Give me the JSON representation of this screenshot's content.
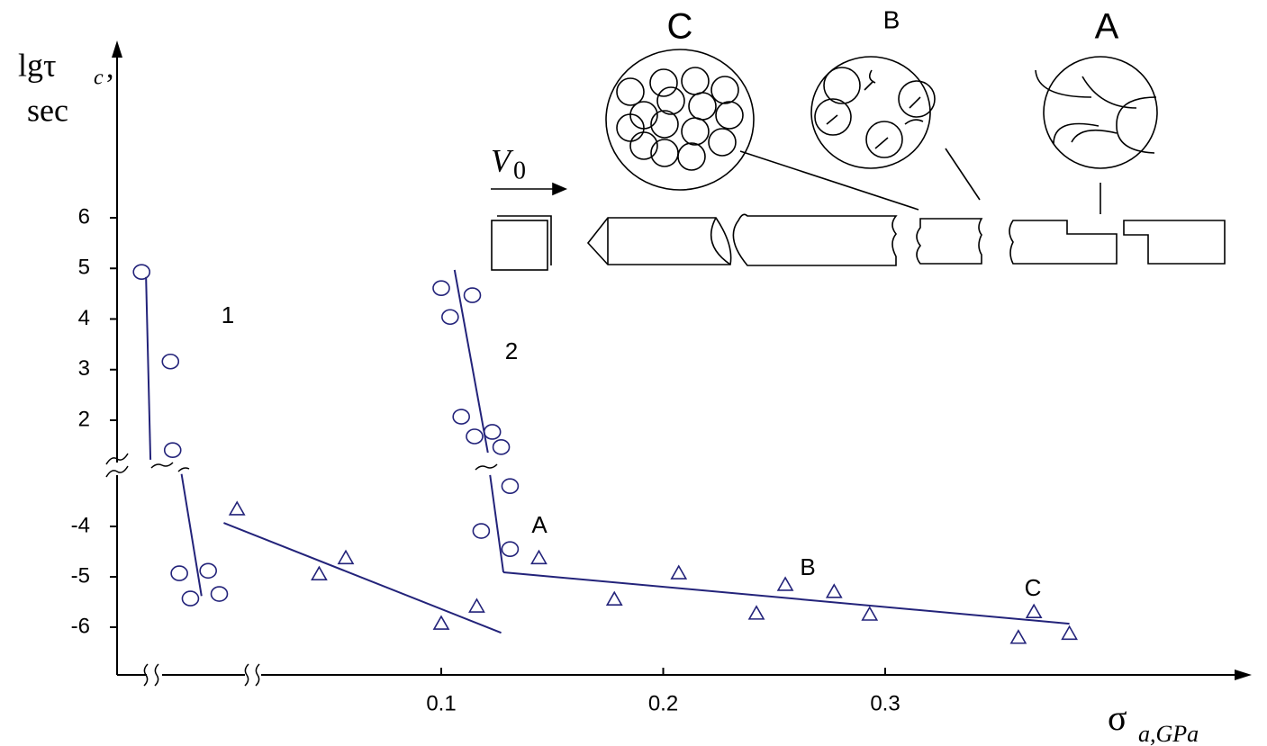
{
  "chart_data": {
    "type": "scatter",
    "ylabel": {
      "symbol": "lgτ",
      "subscript": "c",
      "suffix": ",",
      "unit": "sec"
    },
    "xlabel": {
      "symbol": "σ",
      "subscript": "a,GPa"
    },
    "xticks": [
      0.1,
      0.2,
      0.3
    ],
    "yticks_upper": [
      2,
      3,
      4,
      5,
      6
    ],
    "yticks_lower": [
      -6,
      -5,
      -4
    ],
    "color": "#23237a",
    "series": [
      {
        "marker": "circle",
        "panel": "upper",
        "x": [
          -0.035,
          -0.022,
          -0.021
        ],
        "y": [
          4.93,
          3.16,
          1.41
        ]
      },
      {
        "marker": "circle",
        "panel": "lower",
        "x": [
          -0.018,
          -0.013,
          -0.005,
          0.0
        ],
        "y": [
          -4.93,
          -5.43,
          -4.88,
          -5.34
        ]
      },
      {
        "marker": "triangle",
        "panel": "lower",
        "x": [
          0.008,
          0.045,
          0.057,
          0.1,
          0.116
        ],
        "y": [
          -3.66,
          -4.95,
          -4.63,
          -5.93,
          -5.59
        ]
      },
      {
        "marker": "circle",
        "panel": "upper",
        "x": [
          0.1,
          0.104,
          0.114,
          0.109,
          0.115,
          0.123,
          0.127
        ],
        "y": [
          4.61,
          4.04,
          4.47,
          2.07,
          1.68,
          1.77,
          1.47
        ]
      },
      {
        "marker": "circle",
        "panel": "lower",
        "x": [
          0.131,
          0.118,
          0.131
        ],
        "y": [
          -3.2,
          -4.09,
          -4.45
        ]
      },
      {
        "marker": "triangle",
        "panel": "lower",
        "x": [
          0.144,
          0.178,
          0.207,
          0.242,
          0.255,
          0.277,
          0.293,
          0.36,
          0.367,
          0.383
        ],
        "y": [
          -4.63,
          -5.45,
          -4.93,
          -5.73,
          -5.16,
          -5.3,
          -5.75,
          -6.21,
          -5.7,
          -6.13
        ]
      }
    ],
    "fits": [
      {
        "panel": "upper",
        "x": [
          -0.033,
          -0.031
        ],
        "y": [
          4.83,
          1.22
        ]
      },
      {
        "panel": "lower",
        "x": [
          -0.017,
          -0.008
        ],
        "y": [
          -2.96,
          -5.38
        ]
      },
      {
        "panel": "lower",
        "x": [
          0.002,
          0.127
        ],
        "y": [
          -3.93,
          -6.11
        ]
      },
      {
        "panel": "upper",
        "x": [
          0.106,
          0.121
        ],
        "y": [
          4.97,
          1.36
        ]
      },
      {
        "panel": "lower",
        "x": [
          0.122,
          0.128
        ],
        "y": [
          -2.98,
          -4.91
        ]
      },
      {
        "panel": "lower",
        "x": [
          0.128,
          0.383
        ],
        "y": [
          -4.91,
          -5.93
        ]
      }
    ],
    "annotations": [
      "1",
      "2",
      "A",
      "B",
      "C"
    ],
    "inset": {
      "labels": [
        "C",
        "B",
        "A"
      ],
      "velocity": {
        "symbol": "V",
        "subscript": "0"
      }
    }
  }
}
